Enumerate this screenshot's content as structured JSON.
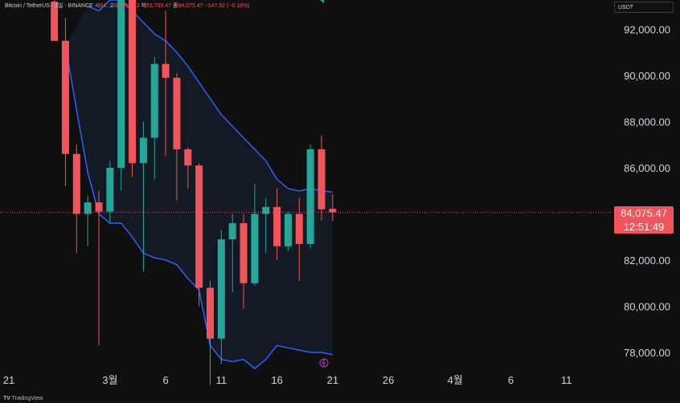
{
  "header": {
    "symbol_text": "Bitcoin / TetherUS · 1일 · BINANCE",
    "open_label": "시",
    "open_value": "84,",
    "high_label": "고",
    "high_value": "84,850.33",
    "low_label": "저",
    "low_value": "83,700.47",
    "close_label": "종",
    "close_value": "84,075.47",
    "change_text": "−147.92 (−0.18%)"
  },
  "currency_button": "USDT",
  "last_price": {
    "price": "84,075.47",
    "countdown": "12:51:49"
  },
  "footer": {
    "logo_text": "TradingView"
  },
  "colors": {
    "up": "#26a69a",
    "down": "#f2545b",
    "band": "#2962ff",
    "background": "#0f0f10"
  },
  "chart_data": {
    "type": "candlestick",
    "symbol": "Bitcoin / TetherUS",
    "interval": "1일",
    "exchange": "BINANCE",
    "y_ticks": [
      "78,000.00",
      "80,000.00",
      "82,000.00",
      "84,000.00",
      "86,000.00",
      "88,000.00",
      "90,000.00",
      "92,000.00"
    ],
    "y_tick_values": [
      78000,
      80000,
      82000,
      84000,
      86000,
      88000,
      90000,
      92000
    ],
    "x_ticks": [
      {
        "label": "21",
        "day": -8
      },
      {
        "label": "3월",
        "day": 1
      },
      {
        "label": "6",
        "day": 6
      },
      {
        "label": "11",
        "day": 11
      },
      {
        "label": "16",
        "day": 16
      },
      {
        "label": "21",
        "day": 21
      },
      {
        "label": "26",
        "day": 26
      },
      {
        "label": "4월",
        "day": 32
      },
      {
        "label": "6",
        "day": 37
      },
      {
        "label": "11",
        "day": 42
      }
    ],
    "ylim": [
      77500,
      93000
    ],
    "candles": [
      {
        "day": -4,
        "open": 93200,
        "high": 94000,
        "low": 91500,
        "close": 91500
      },
      {
        "day": -3,
        "open": 91500,
        "high": 92500,
        "low": 85200,
        "close": 86600
      },
      {
        "day": -2,
        "open": 86600,
        "high": 87000,
        "low": 82300,
        "close": 84000
      },
      {
        "day": -1,
        "open": 84000,
        "high": 84800,
        "low": 82600,
        "close": 84500
      },
      {
        "day": 0,
        "open": 84500,
        "high": 85000,
        "low": 78300,
        "close": 84100
      },
      {
        "day": 1,
        "open": 84100,
        "high": 86300,
        "low": 83600,
        "close": 86000
      },
      {
        "day": 2,
        "open": 86000,
        "high": 95000,
        "low": 85000,
        "close": 94200
      },
      {
        "day": 3,
        "open": 94200,
        "high": 94500,
        "low": 85600,
        "close": 86200
      },
      {
        "day": 4,
        "open": 86200,
        "high": 88000,
        "low": 81500,
        "close": 87300
      },
      {
        "day": 5,
        "open": 87300,
        "high": 90800,
        "low": 85500,
        "close": 90500
      },
      {
        "day": 6,
        "open": 90500,
        "high": 92800,
        "low": 86500,
        "close": 89900
      },
      {
        "day": 7,
        "open": 89900,
        "high": 90100,
        "low": 84600,
        "close": 86800
      },
      {
        "day": 8,
        "open": 86800,
        "high": 86900,
        "low": 85100,
        "close": 86100
      },
      {
        "day": 9,
        "open": 86100,
        "high": 86200,
        "low": 80000,
        "close": 80800
      },
      {
        "day": 10,
        "open": 80800,
        "high": 81100,
        "low": 76600,
        "close": 78600
      },
      {
        "day": 11,
        "open": 78600,
        "high": 83300,
        "low": 77500,
        "close": 82900
      },
      {
        "day": 12,
        "open": 82900,
        "high": 84000,
        "low": 80600,
        "close": 83600
      },
      {
        "day": 13,
        "open": 83600,
        "high": 84000,
        "low": 79900,
        "close": 81000
      },
      {
        "day": 14,
        "open": 81000,
        "high": 85300,
        "low": 80900,
        "close": 84000
      },
      {
        "day": 15,
        "open": 84000,
        "high": 84700,
        "low": 82300,
        "close": 84300
      },
      {
        "day": 16,
        "open": 84300,
        "high": 85100,
        "low": 82000,
        "close": 82600
      },
      {
        "day": 17,
        "open": 82600,
        "high": 84100,
        "low": 82400,
        "close": 84000
      },
      {
        "day": 18,
        "open": 84000,
        "high": 84700,
        "low": 81100,
        "close": 82700
      },
      {
        "day": 19,
        "open": 82700,
        "high": 87000,
        "low": 82500,
        "close": 86800
      },
      {
        "day": 20,
        "open": 86800,
        "high": 87400,
        "low": 83700,
        "close": 84200
      },
      {
        "day": 21,
        "open": 84223,
        "high": 84850.33,
        "low": 83700.47,
        "close": 84075.47
      }
    ],
    "upper_band": [
      {
        "day": -1,
        "value": 93000
      },
      {
        "day": 0,
        "value": 92800
      },
      {
        "day": 1,
        "value": 94000
      },
      {
        "day": 2,
        "value": 94500
      },
      {
        "day": 3,
        "value": 92800
      },
      {
        "day": 4,
        "value": 92300
      },
      {
        "day": 5,
        "value": 91800
      },
      {
        "day": 6,
        "value": 91500
      },
      {
        "day": 7,
        "value": 91000
      },
      {
        "day": 8,
        "value": 90400
      },
      {
        "day": 9,
        "value": 89700
      },
      {
        "day": 10,
        "value": 89000
      },
      {
        "day": 11,
        "value": 88300
      },
      {
        "day": 12,
        "value": 87800
      },
      {
        "day": 13,
        "value": 87300
      },
      {
        "day": 14,
        "value": 86800
      },
      {
        "day": 15,
        "value": 86300
      },
      {
        "day": 16,
        "value": 85500
      },
      {
        "day": 17,
        "value": 85100
      },
      {
        "day": 18,
        "value": 85000
      },
      {
        "day": 19,
        "value": 85100
      },
      {
        "day": 20,
        "value": 85000
      },
      {
        "day": 21,
        "value": 84950
      }
    ],
    "lower_band": [
      {
        "day": -3,
        "value": 91300
      },
      {
        "day": -2,
        "value": 88500
      },
      {
        "day": -1,
        "value": 85800
      },
      {
        "day": 0,
        "value": 84000
      },
      {
        "day": 1,
        "value": 83600
      },
      {
        "day": 2,
        "value": 83600
      },
      {
        "day": 3,
        "value": 83000
      },
      {
        "day": 4,
        "value": 82300
      },
      {
        "day": 5,
        "value": 82100
      },
      {
        "day": 6,
        "value": 82000
      },
      {
        "day": 7,
        "value": 81800
      },
      {
        "day": 8,
        "value": 81200
      },
      {
        "day": 9,
        "value": 80700
      },
      {
        "day": 10,
        "value": 78300
      },
      {
        "day": 11,
        "value": 77700
      },
      {
        "day": 12,
        "value": 77600
      },
      {
        "day": 13,
        "value": 77700
      },
      {
        "day": 14,
        "value": 77300
      },
      {
        "day": 15,
        "value": 77700
      },
      {
        "day": 16,
        "value": 78300
      },
      {
        "day": 17,
        "value": 78200
      },
      {
        "day": 18,
        "value": 78100
      },
      {
        "day": 19,
        "value": 78000
      },
      {
        "day": 20,
        "value": 78000
      },
      {
        "day": 21,
        "value": 77900
      }
    ],
    "last_price_line": 84075.47
  }
}
